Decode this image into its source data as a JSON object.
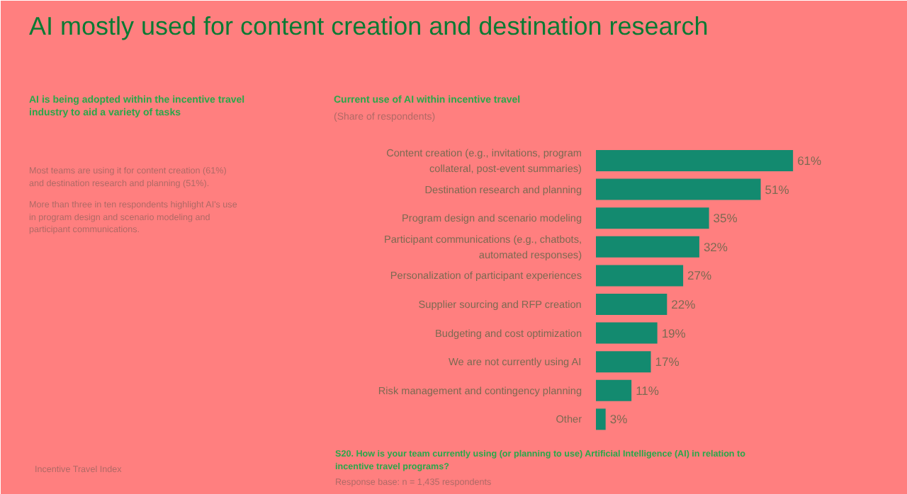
{
  "chart_data": {
    "type": "bar",
    "orientation": "horizontal",
    "title": "Current use of AI within incentive travel",
    "subtitle": "(Share of respondents)",
    "categories": [
      "Content creation (e.g., invitations, program collateral, post-event summaries)",
      "Destination research and planning",
      "Program design and scenario modeling",
      "Participant communications (e.g., chatbots, automated responses)",
      "Personalization of participant experiences",
      "Supplier sourcing and RFP creation",
      "Budgeting and cost optimization",
      "We are not currently using AI",
      "Risk management and contingency planning",
      "Other"
    ],
    "values": [
      61,
      51,
      35,
      32,
      27,
      22,
      19,
      17,
      11,
      3
    ],
    "color": "#138a6f",
    "value_labels": [
      "61%",
      "51%",
      "35%",
      "32%",
      "27%",
      "22%",
      "19%",
      "17%",
      "11%",
      "3%"
    ],
    "annotations": [
      "AI mostly used for content creation and destination research",
      "AI is being adopted within the incentive travel industry to aid a variety of tasks",
      "Most teams are using it for content creation (61%) and destination research and planning (51%).",
      "More than three in ten respondents highlight AI's use in program design and scenario modeling and participant communications.",
      "S20. How is your team currently using (or planning to use) Artificial Intelligence (AI) in relation to incentive travel programs?",
      "Response base: n = 1,435 respondents",
      "Incentive Travel Index"
    ]
  }
}
